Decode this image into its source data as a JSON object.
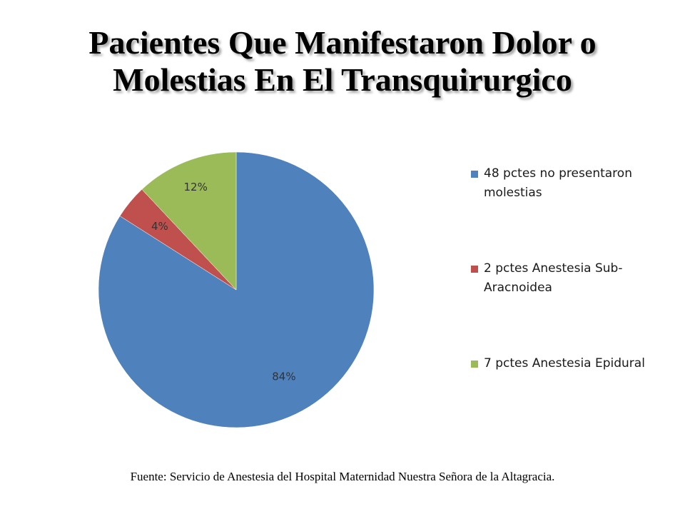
{
  "title_lines": [
    "Pacientes Que Manifestaron Dolor o",
    "Molestias En El Transquirurgico"
  ],
  "source": "Fuente: Servicio de Anestesia del Hospital Maternidad Nuestra Señora de la Altagracia.",
  "chart_data": {
    "type": "pie",
    "title": "Pacientes Que Manifestaron Dolor o Molestias En El Transquirurgico",
    "legend_position": "right",
    "slices": [
      {
        "name": "48 pctes no presentaron molestias",
        "value": 84,
        "label": "84%",
        "color": "#4f81bd"
      },
      {
        "name": "2 pctes Anestesia Sub-Aracnoidea",
        "value": 4,
        "label": "4%",
        "color": "#c0504d"
      },
      {
        "name": "7 pctes Anestesia Epidural",
        "value": 12,
        "label": "12%",
        "color": "#9bbb59"
      }
    ]
  }
}
